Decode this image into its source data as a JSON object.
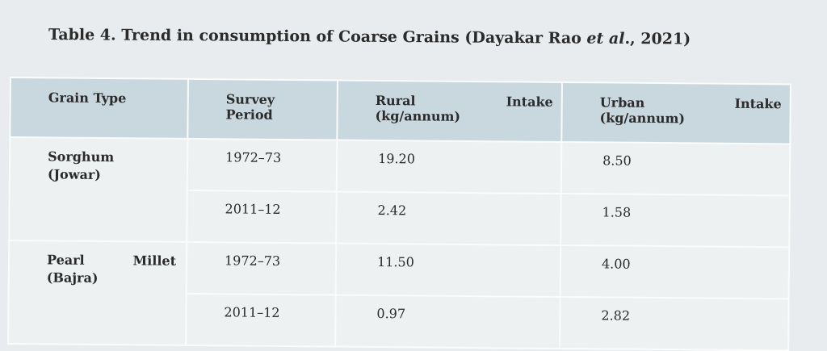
{
  "caption": {
    "prefix": "Table 4. Trend in consumption of Coarse Grains (Dayakar Rao ",
    "italic": "et al",
    "suffix": "., 2021)"
  },
  "headers": {
    "grain_type": "Grain Type",
    "survey_line1": "Survey",
    "survey_line2": "Period",
    "rural_line1": "Rural",
    "rural_intake": "Intake",
    "rural_line2": "(kg/annum)",
    "urban_line1": "Urban",
    "urban_intake": "Intake",
    "urban_line2": "(kg/annum)"
  },
  "rows": [
    {
      "grain_line1": "Sorghum",
      "grain_line1b": "",
      "grain_line2": "(Jowar)",
      "entries": [
        {
          "period": "1972–73",
          "rural": "19.20",
          "urban": "8.50"
        },
        {
          "period": "2011–12",
          "rural": "2.42",
          "urban": "1.58"
        }
      ]
    },
    {
      "grain_line1": "Pearl",
      "grain_line1b": "Millet",
      "grain_line2": "(Bajra)",
      "entries": [
        {
          "period": "1972–73",
          "rural": "11.50",
          "urban": "4.00"
        },
        {
          "period": "2011–12",
          "rural": "0.97",
          "urban": "2.82"
        }
      ]
    }
  ]
}
